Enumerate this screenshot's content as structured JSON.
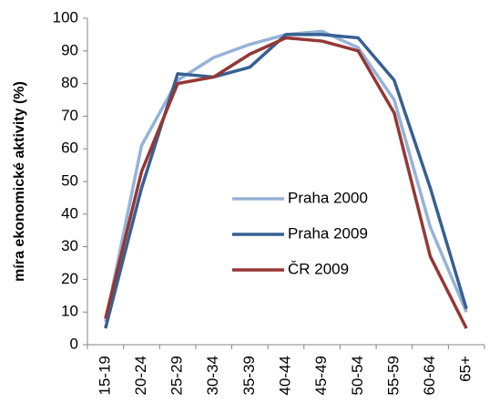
{
  "chart_data": {
    "type": "line",
    "y_label": "míra ekonomické aktivity (%)",
    "categories": [
      "15-19",
      "20-24",
      "25-29",
      "30-34",
      "35-39",
      "40-44",
      "45-49",
      "50-54",
      "55-59",
      "60-64",
      "65+"
    ],
    "series": [
      {
        "name": "Praha 2000",
        "color": "#95b3d7",
        "values": [
          7,
          61,
          81,
          88,
          92,
          95,
          96,
          91,
          75,
          36,
          10
        ]
      },
      {
        "name": "Praha 2009",
        "color": "#376092",
        "values": [
          5,
          48,
          83,
          82,
          85,
          95,
          95,
          94,
          81,
          48,
          11
        ]
      },
      {
        "name": "ČR 2009",
        "color": "#953735",
        "values": [
          8,
          53,
          80,
          82,
          89,
          94,
          93,
          90,
          71,
          27,
          5
        ]
      }
    ],
    "ylim": [
      0,
      100
    ],
    "yticks": [
      0,
      10,
      20,
      30,
      40,
      50,
      60,
      70,
      80,
      90,
      100
    ],
    "grid": false
  }
}
